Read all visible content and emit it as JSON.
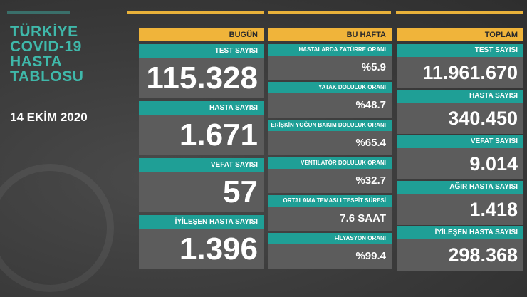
{
  "title": [
    "TÜRKİYE",
    "COVID-19",
    "HASTA",
    "TABLOSU"
  ],
  "date": "14 EKİM 2020",
  "columns": [
    {
      "header": "BUGÜN",
      "items": [
        {
          "label": "TEST SAYISI",
          "value": "115.328"
        },
        {
          "label": "HASTA SAYISI",
          "value": "1.671"
        },
        {
          "label": "VEFAT SAYISI",
          "value": "57"
        },
        {
          "label": "İYİLEŞEN HASTA SAYISI",
          "value": "1.396"
        }
      ]
    },
    {
      "header": "BU HAFTA",
      "items": [
        {
          "label": "HASTALARDA ZATÜRRE ORANI",
          "value": "%5.9"
        },
        {
          "label": "YATAK DOLULUK ORANI",
          "value": "%48.7"
        },
        {
          "label": "ERİŞKİN YOĞUN BAKIM DOLULUK ORANI",
          "value": "%65.4"
        },
        {
          "label": "VENTİLATÖR DOLULUK ORANI",
          "value": "%32.7"
        },
        {
          "label": "ORTALAMA TEMASLI TESPİT SÜRESİ",
          "value": "7.6 SAAT"
        },
        {
          "label": "FİLYASYON ORANI",
          "value": "%99.4"
        }
      ]
    },
    {
      "header": "TOPLAM",
      "items": [
        {
          "label": "TEST SAYISI",
          "value": "11.961.670"
        },
        {
          "label": "HASTA SAYISI",
          "value": "340.450"
        },
        {
          "label": "VEFAT SAYISI",
          "value": "9.014"
        },
        {
          "label": "AĞIR HASTA SAYISI",
          "value": "1.418"
        },
        {
          "label": "İYİLEŞEN HASTA SAYISI",
          "value": "298.368"
        }
      ]
    }
  ]
}
